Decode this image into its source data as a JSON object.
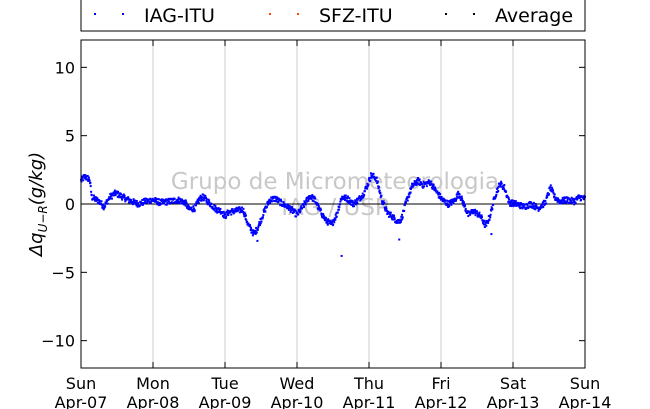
{
  "chart_data": {
    "type": "scatter",
    "title": "",
    "ylabel": "Δq_{U-R}(g/kg)",
    "ylabel_parts": {
      "main": "Δq",
      "sub": "U−R",
      "unit": "(g/kg)"
    },
    "xlabel": "",
    "ylim": [
      -12,
      12
    ],
    "yticks": [
      -10,
      -5,
      0,
      5,
      10
    ],
    "xlim": [
      0,
      7
    ],
    "x_unit": "days from Sun Apr-07",
    "xticks": [
      {
        "x": 0,
        "day": "Sun",
        "date": "Apr-07"
      },
      {
        "x": 1,
        "day": "Mon",
        "date": "Apr-08"
      },
      {
        "x": 2,
        "day": "Tue",
        "date": "Apr-09"
      },
      {
        "x": 3,
        "day": "Wed",
        "date": "Apr-10"
      },
      {
        "x": 4,
        "day": "Thu",
        "date": "Apr-11"
      },
      {
        "x": 5,
        "day": "Fri",
        "date": "Apr-12"
      },
      {
        "x": 6,
        "day": "Sat",
        "date": "Apr-13"
      },
      {
        "x": 7,
        "day": "Sun",
        "date": "Apr-14"
      }
    ],
    "grid": "vertical",
    "zero_line": true,
    "legend": {
      "placement": "top",
      "entries": [
        "IAG-ITU",
        "SFZ-ITU",
        "Average"
      ]
    },
    "watermark": [
      "Grupo de Micrometeorologia",
      "IAG / USP"
    ],
    "series": [
      {
        "name": "IAG-ITU",
        "color": "#0000ff",
        "profile": [
          [
            0.0,
            1.7
          ],
          [
            0.05,
            2.0
          ],
          [
            0.12,
            1.8
          ],
          [
            0.15,
            0.5
          ],
          [
            0.25,
            0.2
          ],
          [
            0.32,
            -0.2
          ],
          [
            0.4,
            0.5
          ],
          [
            0.48,
            0.8
          ],
          [
            0.55,
            0.6
          ],
          [
            0.62,
            0.4
          ],
          [
            0.7,
            0.2
          ],
          [
            0.8,
            0.0
          ],
          [
            0.9,
            0.2
          ],
          [
            1.0,
            0.3
          ],
          [
            1.1,
            0.1
          ],
          [
            1.25,
            0.2
          ],
          [
            1.35,
            0.3
          ],
          [
            1.45,
            0.1
          ],
          [
            1.5,
            -0.4
          ],
          [
            1.58,
            -0.3
          ],
          [
            1.65,
            0.4
          ],
          [
            1.7,
            0.5
          ],
          [
            1.78,
            0.1
          ],
          [
            1.88,
            -0.4
          ],
          [
            1.95,
            -0.5
          ],
          [
            2.0,
            -0.9
          ],
          [
            2.05,
            -0.6
          ],
          [
            2.15,
            -0.5
          ],
          [
            2.25,
            -0.4
          ],
          [
            2.32,
            -1.5
          ],
          [
            2.4,
            -2.2
          ],
          [
            2.45,
            -1.8
          ],
          [
            2.55,
            -0.5
          ],
          [
            2.62,
            0.3
          ],
          [
            2.7,
            0.4
          ],
          [
            2.8,
            0.0
          ],
          [
            2.9,
            -0.3
          ],
          [
            3.0,
            -0.8
          ],
          [
            3.08,
            -0.2
          ],
          [
            3.18,
            0.6
          ],
          [
            3.25,
            0.3
          ],
          [
            3.3,
            -0.3
          ],
          [
            3.4,
            -1.2
          ],
          [
            3.48,
            -1.5
          ],
          [
            3.55,
            -0.8
          ],
          [
            3.62,
            0.5
          ],
          [
            3.7,
            0.4
          ],
          [
            3.78,
            0.0
          ],
          [
            3.85,
            0.3
          ],
          [
            3.92,
            0.7
          ],
          [
            3.98,
            1.4
          ],
          [
            4.03,
            2.1
          ],
          [
            4.1,
            1.9
          ],
          [
            4.18,
            0.3
          ],
          [
            4.25,
            -0.6
          ],
          [
            4.32,
            -0.9
          ],
          [
            4.4,
            -1.3
          ],
          [
            4.45,
            -1.1
          ],
          [
            4.52,
            0.2
          ],
          [
            4.6,
            1.3
          ],
          [
            4.68,
            1.7
          ],
          [
            4.75,
            1.4
          ],
          [
            4.85,
            1.6
          ],
          [
            4.95,
            0.8
          ],
          [
            5.02,
            0.3
          ],
          [
            5.1,
            0.0
          ],
          [
            5.18,
            0.2
          ],
          [
            5.25,
            0.8
          ],
          [
            5.3,
            0.2
          ],
          [
            5.38,
            -0.8
          ],
          [
            5.45,
            -0.5
          ],
          [
            5.55,
            -0.9
          ],
          [
            5.62,
            -1.6
          ],
          [
            5.68,
            -0.9
          ],
          [
            5.75,
            0.6
          ],
          [
            5.82,
            1.5
          ],
          [
            5.88,
            1.2
          ],
          [
            5.95,
            0.1
          ],
          [
            6.05,
            0.0
          ],
          [
            6.15,
            -0.2
          ],
          [
            6.25,
            0.0
          ],
          [
            6.35,
            -0.3
          ],
          [
            6.45,
            0.1
          ],
          [
            6.52,
            1.2
          ],
          [
            6.58,
            0.5
          ],
          [
            6.65,
            0.2
          ],
          [
            6.75,
            0.3
          ],
          [
            6.85,
            0.2
          ],
          [
            6.92,
            0.5
          ],
          [
            7.0,
            0.4
          ]
        ],
        "outliers": [
          [
            3.62,
            -3.8
          ],
          [
            4.42,
            -2.6
          ],
          [
            2.45,
            -2.7
          ],
          [
            5.7,
            -2.2
          ]
        ]
      }
    ]
  }
}
